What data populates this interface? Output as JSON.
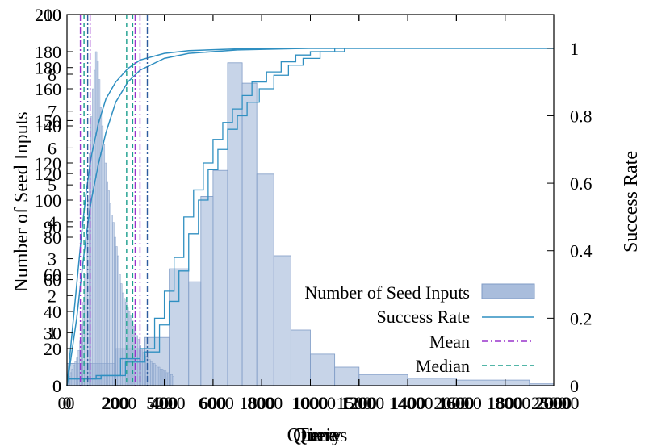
{
  "chart_data": {
    "type": "bar",
    "description_note": "Overlaid plots: histogram of seed inputs (bars) and cumulative success rate (lines) vs number of queries; several overlapping axis scales.",
    "xlabel_layers": [
      "Query",
      "Time",
      "Queries"
    ],
    "ylabel": "Number of Seed Inputs",
    "ylabel2": "Success Rate",
    "x_ticks_layers": [
      [
        "0",
        "200",
        "400",
        "600",
        "800",
        "1000",
        "1200",
        "1400",
        "1600",
        "1800",
        "2000"
      ],
      [
        "0",
        "2000",
        "4000",
        "6000",
        "8000",
        "10000",
        "12000",
        "14000",
        "16000",
        "18000",
        "20000"
      ],
      [
        "0",
        "500",
        "1000",
        "1500",
        "2000",
        "2500"
      ]
    ],
    "y_ticks_layers": [
      [
        "0",
        "20",
        "40",
        "60",
        "80",
        "100",
        "120",
        "140",
        "160",
        "180",
        "200"
      ],
      [
        "0",
        "30",
        "60",
        "90",
        "120",
        "150",
        "180",
        "210"
      ],
      [
        "1",
        "2",
        "3",
        "4",
        "5",
        "6",
        "7",
        "8"
      ]
    ],
    "y2_ticks": [
      "0",
      "0.2",
      "0.4",
      "0.6",
      "0.8",
      "1"
    ],
    "y2_lim": [
      0,
      1.1
    ],
    "histogram_values": [
      4,
      5,
      7,
      9,
      11,
      13,
      15,
      19,
      24,
      33,
      45,
      60,
      80,
      100,
      125,
      145,
      160,
      170,
      180,
      175,
      165,
      150,
      140,
      130,
      120,
      110,
      105,
      98,
      92,
      88,
      80,
      75,
      70,
      60,
      55,
      50,
      47,
      45,
      42,
      40,
      38,
      35,
      32,
      30,
      27,
      25,
      22,
      20,
      18,
      17,
      16,
      15,
      14,
      13,
      12,
      12,
      11,
      10,
      10,
      9,
      9,
      8,
      8,
      7,
      7,
      6,
      6,
      5
    ],
    "histogram_wide_bins": [
      {
        "x0": 0,
        "x1": 200,
        "value": 12
      },
      {
        "x0": 200,
        "x1": 320,
        "value": 20
      },
      {
        "x0": 320,
        "x1": 420,
        "value": 26
      },
      {
        "x0": 420,
        "x1": 500,
        "value": 63
      },
      {
        "x0": 500,
        "x1": 550,
        "value": 56
      },
      {
        "x0": 550,
        "x1": 600,
        "value": 102
      },
      {
        "x0": 600,
        "x1": 660,
        "value": 116
      },
      {
        "x0": 660,
        "x1": 720,
        "value": 174
      },
      {
        "x0": 720,
        "x1": 780,
        "value": 163
      },
      {
        "x0": 780,
        "x1": 850,
        "value": 114
      },
      {
        "x0": 850,
        "x1": 920,
        "value": 70
      },
      {
        "x0": 920,
        "x1": 1000,
        "value": 30
      },
      {
        "x0": 1000,
        "x1": 1100,
        "value": 17
      },
      {
        "x0": 1100,
        "x1": 1200,
        "value": 10
      },
      {
        "x0": 1200,
        "x1": 1400,
        "value": 6
      },
      {
        "x0": 1400,
        "x1": 1600,
        "value": 4
      },
      {
        "x0": 1600,
        "x1": 1900,
        "value": 3
      },
      {
        "x0": 1900,
        "x1": 2000,
        "value": 1
      }
    ],
    "success_rate_smooth_a": [
      [
        0,
        0
      ],
      [
        20,
        0.15
      ],
      [
        40,
        0.3
      ],
      [
        60,
        0.45
      ],
      [
        80,
        0.58
      ],
      [
        100,
        0.68
      ],
      [
        130,
        0.78
      ],
      [
        160,
        0.85
      ],
      [
        200,
        0.9
      ],
      [
        250,
        0.94
      ],
      [
        300,
        0.965
      ],
      [
        400,
        0.985
      ],
      [
        500,
        0.993
      ],
      [
        700,
        0.998
      ],
      [
        1000,
        1.0
      ],
      [
        2000,
        1.0
      ]
    ],
    "success_rate_smooth_b": [
      [
        0,
        0
      ],
      [
        20,
        0.1
      ],
      [
        40,
        0.2
      ],
      [
        60,
        0.33
      ],
      [
        80,
        0.45
      ],
      [
        100,
        0.55
      ],
      [
        130,
        0.66
      ],
      [
        160,
        0.75
      ],
      [
        200,
        0.84
      ],
      [
        250,
        0.9
      ],
      [
        300,
        0.935
      ],
      [
        400,
        0.97
      ],
      [
        500,
        0.985
      ],
      [
        700,
        0.995
      ],
      [
        1000,
        1.0
      ],
      [
        2000,
        1.0
      ]
    ],
    "success_rate_step_a": [
      [
        0,
        0.02
      ],
      [
        120,
        0.03
      ],
      [
        220,
        0.08
      ],
      [
        300,
        0.11
      ],
      [
        360,
        0.2
      ],
      [
        400,
        0.28
      ],
      [
        440,
        0.38
      ],
      [
        480,
        0.5
      ],
      [
        520,
        0.58
      ],
      [
        560,
        0.66
      ],
      [
        600,
        0.73
      ],
      [
        640,
        0.78
      ],
      [
        680,
        0.82
      ],
      [
        720,
        0.86
      ],
      [
        760,
        0.9
      ],
      [
        820,
        0.93
      ],
      [
        880,
        0.96
      ],
      [
        940,
        0.98
      ],
      [
        1000,
        0.99
      ],
      [
        1100,
        1.0
      ],
      [
        2000,
        1.0
      ]
    ],
    "success_rate_step_b": [
      [
        0,
        0.02
      ],
      [
        140,
        0.03
      ],
      [
        240,
        0.07
      ],
      [
        320,
        0.1
      ],
      [
        380,
        0.18
      ],
      [
        420,
        0.25
      ],
      [
        460,
        0.34
      ],
      [
        500,
        0.45
      ],
      [
        540,
        0.55
      ],
      [
        580,
        0.64
      ],
      [
        620,
        0.7
      ],
      [
        660,
        0.76
      ],
      [
        700,
        0.8
      ],
      [
        740,
        0.84
      ],
      [
        790,
        0.88
      ],
      [
        850,
        0.92
      ],
      [
        910,
        0.95
      ],
      [
        970,
        0.97
      ],
      [
        1040,
        0.99
      ],
      [
        1140,
        1.0
      ],
      [
        2000,
        1.0
      ]
    ],
    "mean_lines_x": [
      55,
      95,
      280,
      300
    ],
    "median_lines_x": [
      70,
      245,
      270
    ],
    "extra_dashdot_x": [
      85,
      330
    ],
    "legend": {
      "seed": "Number of Seed Inputs",
      "success": "Success Rate",
      "mean": "Mean",
      "median": "Median"
    },
    "colors": {
      "bar_fill": "#a9bddc",
      "bar_stroke": "#7f9bc6",
      "line": "#2f8fc1",
      "mean": "#9933cc",
      "median": "#1a9e8c",
      "dashdot_dark": "#2e5c9e"
    }
  }
}
